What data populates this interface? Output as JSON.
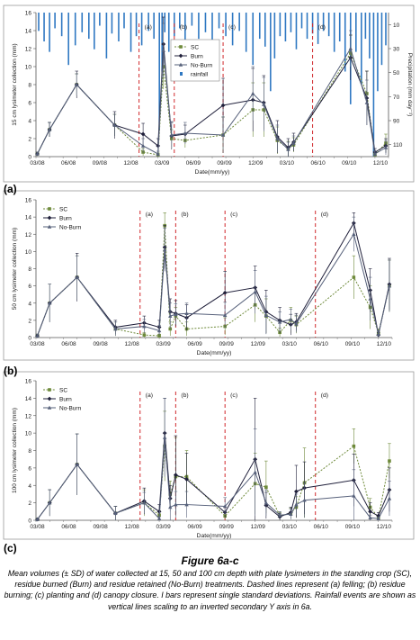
{
  "colors": {
    "sc": "#6e8a3a",
    "burn": "#1f1f3a",
    "noburn": "#56607a",
    "rain": "#2f78c2",
    "event": "#d0282c",
    "frame": "#9a9a9a"
  },
  "figure": {
    "title": "Figure 6a-c",
    "caption": "Mean volumes (± SD) of water collected at 15, 50 and 100 cm depth with plate lysimeters in the standing crop (SC), residue burned (Burn) and residue retained (No-Burn) treatments. Dashed lines represent (a) felling; (b) residue burning; (c) planting and (d) canopy closure. I bars represent single standard deviations. Rainfall events are shown as vertical lines scaling to an inverted secondary Y axis in 6a."
  },
  "chart_data": [
    {
      "panel": "(a)",
      "type": "line",
      "ylabel": "15 cm lysimeter collection (mm)",
      "y2label": "Precipitation (mm day⁻¹)",
      "xlabel": "Date(mm/yy)",
      "ylim": [
        0,
        16
      ],
      "yticks": [
        0,
        2,
        4,
        6,
        8,
        10,
        12,
        14,
        16
      ],
      "y2ticks": [
        "10",
        "30",
        "50",
        "70",
        "90",
        "110"
      ],
      "xlim": [
        0,
        26
      ],
      "xticks": [
        "03/08",
        "06/08",
        "09/08",
        "12/08",
        "03/09",
        "06/09",
        "09/09",
        "12/09",
        "03/10",
        "06/10",
        "09/10",
        "12/10"
      ],
      "legend_position": "top-center",
      "events": [
        {
          "label": "(a)",
          "x": 7.6
        },
        {
          "label": "(b)",
          "x": 10.2
        },
        {
          "label": "(c)",
          "x": 13.8
        },
        {
          "label": "(d)",
          "x": 20.4
        }
      ],
      "rainfall": {
        "name": "rainfall",
        "x": [
          0.2,
          0.6,
          1.0,
          1.4,
          1.9,
          2.4,
          2.9,
          3.4,
          3.9,
          4.3,
          4.7,
          5.2,
          5.6,
          6.1,
          6.5,
          7.0,
          7.4,
          7.8,
          8.3,
          8.7,
          9.1,
          9.3,
          9.5,
          9.8,
          10.2,
          10.6,
          11.0,
          11.5,
          12.0,
          12.5,
          13.0,
          13.5,
          14.0,
          14.5,
          15.0,
          15.5,
          16.0,
          16.5,
          16.9,
          17.3,
          17.6,
          18.0,
          18.4,
          18.8,
          19.2,
          19.6,
          20.0,
          20.4,
          20.8,
          21.2,
          21.6,
          22.0,
          22.4,
          22.8,
          23.2,
          23.6,
          24.0,
          24.3,
          24.6,
          24.9,
          25.2,
          25.5,
          25.8
        ],
        "values": [
          14,
          22,
          30,
          12,
          18,
          40,
          25,
          15,
          20,
          28,
          10,
          35,
          16,
          22,
          12,
          30,
          18,
          25,
          14,
          20,
          90,
          45,
          15,
          30,
          18,
          12,
          25,
          10,
          20,
          15,
          22,
          12,
          18,
          25,
          14,
          30,
          40,
          20,
          26,
          60,
          35,
          18,
          22,
          15,
          28,
          12,
          20,
          16,
          24,
          14,
          18,
          30,
          22,
          45,
          70,
          30,
          55,
          20,
          35,
          110,
          60,
          40,
          25
        ]
      },
      "series": [
        {
          "name": "SC",
          "x": [
            0.1,
            1.0,
            3.0,
            5.8,
            7.9,
            9.0,
            9.4,
            10.0,
            11.0,
            13.8,
            16.0,
            16.8,
            17.8,
            18.6,
            19.0,
            23.2,
            24.4,
            25.0,
            25.8
          ],
          "y": [
            0.3,
            3.0,
            8.0,
            3.5,
            0.5,
            0.2,
            10.0,
            2.0,
            1.8,
            2.4,
            5.2,
            5.2,
            1.8,
            0.9,
            1.3,
            11.5,
            7.0,
            0.2,
            1.5
          ],
          "sd": [
            0.2,
            0.8,
            1.2,
            1.2,
            0.4,
            0.2,
            2.5,
            1.0,
            0.8,
            2.0,
            3.0,
            3.0,
            1.5,
            0.8,
            0.8,
            2.0,
            2.5,
            0.2,
            1.0
          ]
        },
        {
          "name": "Burn",
          "x": [
            0.1,
            1.0,
            3.0,
            5.8,
            7.9,
            9.0,
            9.4,
            10.0,
            11.0,
            13.8,
            16.0,
            16.8,
            17.8,
            18.6,
            19.0,
            23.2,
            24.4,
            25.0,
            25.8
          ],
          "y": [
            0.3,
            3.0,
            8.0,
            3.5,
            2.5,
            1.2,
            12.5,
            2.3,
            2.5,
            5.7,
            6.3,
            6.0,
            2.2,
            1.0,
            1.6,
            11.0,
            6.5,
            0.5,
            1.2
          ],
          "sd": [
            0.2,
            0.8,
            1.5,
            1.5,
            1.2,
            0.8,
            3.0,
            1.5,
            1.0,
            3.0,
            3.5,
            3.0,
            1.8,
            1.0,
            1.0,
            2.5,
            3.0,
            0.4,
            0.8
          ]
        },
        {
          "name": "No-Burn",
          "x": [
            0.1,
            1.0,
            3.0,
            5.8,
            7.9,
            9.0,
            9.4,
            10.0,
            11.0,
            13.8,
            16.0,
            16.8,
            17.8,
            18.6,
            19.0,
            23.2,
            24.4,
            25.0,
            25.8
          ],
          "y": [
            0.3,
            3.0,
            8.0,
            3.5,
            1.2,
            0.3,
            11.8,
            2.4,
            2.6,
            2.4,
            7.0,
            5.8,
            2.0,
            0.8,
            1.5,
            12.0,
            6.0,
            0.3,
            1.0
          ],
          "sd": [
            0.2,
            0.8,
            1.2,
            1.2,
            0.8,
            0.3,
            3.0,
            1.5,
            1.2,
            2.0,
            3.0,
            3.0,
            1.5,
            0.8,
            0.8,
            2.0,
            2.5,
            0.3,
            0.8
          ]
        }
      ]
    },
    {
      "panel": "(b)",
      "type": "line",
      "ylabel": "50 cm lysimeter collection (mm)",
      "xlabel": "Date(mm/yy)",
      "ylim": [
        0,
        16
      ],
      "yticks": [
        0,
        2,
        4,
        6,
        8,
        10,
        12,
        14,
        16
      ],
      "xlim": [
        0,
        26
      ],
      "xticks": [
        "03/08",
        "06/08",
        "09/08",
        "12/08",
        "03/09",
        "06/09",
        "09/09",
        "12/09",
        "03/10",
        "06/10",
        "09/10",
        "12/10"
      ],
      "legend_position": "top-left",
      "events": [
        {
          "label": "(a)",
          "x": 7.6
        },
        {
          "label": "(b)",
          "x": 10.2
        },
        {
          "label": "(c)",
          "x": 13.8
        },
        {
          "label": "(d)",
          "x": 20.4
        }
      ],
      "series": [
        {
          "name": "SC",
          "x": [
            0.1,
            1.0,
            3.0,
            5.8,
            7.9,
            9.0,
            9.4,
            9.8,
            10.2,
            11.0,
            13.8,
            16.0,
            16.8,
            17.8,
            18.6,
            19.0,
            23.2,
            24.4,
            25.0,
            25.8
          ],
          "y": [
            0.2,
            4.0,
            7.0,
            1.0,
            0.3,
            0.2,
            13.0,
            1.0,
            2.5,
            1.0,
            1.3,
            3.8,
            2.5,
            0.6,
            2.0,
            1.5,
            7.0,
            3.5,
            0.5,
            6.0
          ],
          "sd": [
            0.2,
            2.2,
            2.5,
            0.8,
            0.3,
            0.2,
            1.5,
            0.8,
            1.0,
            0.8,
            1.0,
            2.0,
            2.0,
            0.5,
            1.5,
            1.0,
            2.5,
            2.5,
            0.5,
            3.0
          ]
        },
        {
          "name": "Burn",
          "x": [
            0.1,
            1.0,
            3.0,
            5.8,
            7.9,
            9.0,
            9.4,
            9.8,
            10.2,
            11.0,
            13.8,
            16.0,
            16.8,
            17.8,
            18.6,
            19.0,
            23.2,
            24.4,
            25.0,
            25.8
          ],
          "y": [
            0.2,
            4.0,
            7.0,
            1.2,
            1.7,
            1.2,
            10.5,
            3.0,
            2.8,
            2.3,
            5.2,
            5.8,
            3.0,
            2.0,
            1.5,
            1.8,
            13.3,
            5.5,
            0.3,
            6.2
          ],
          "sd": [
            0.2,
            2.2,
            2.8,
            0.8,
            0.8,
            0.8,
            2.5,
            1.5,
            1.5,
            1.5,
            2.5,
            2.5,
            2.5,
            1.5,
            1.2,
            1.0,
            1.2,
            2.5,
            0.3,
            3.0
          ]
        },
        {
          "name": "No-Burn",
          "x": [
            0.1,
            1.0,
            3.0,
            5.8,
            7.9,
            9.0,
            9.4,
            9.8,
            10.2,
            11.0,
            13.8,
            16.0,
            16.8,
            17.8,
            18.6,
            19.0,
            23.2,
            24.4,
            25.0,
            25.8
          ],
          "y": [
            0.2,
            4.0,
            7.0,
            1.0,
            1.3,
            0.8,
            10.2,
            2.5,
            2.7,
            2.8,
            2.6,
            5.3,
            2.6,
            1.8,
            2.1,
            1.6,
            12.0,
            4.5,
            0.4,
            6.0
          ],
          "sd": [
            0.2,
            2.2,
            2.5,
            0.8,
            0.8,
            0.6,
            2.5,
            1.5,
            1.2,
            1.2,
            1.5,
            2.5,
            2.2,
            1.2,
            1.2,
            1.0,
            2.0,
            2.5,
            0.4,
            3.0
          ]
        }
      ]
    },
    {
      "panel": "(c)",
      "type": "line",
      "ylabel": "100 cm lysimeter collection (mm)",
      "xlabel": "Date(mm/yy)",
      "ylim": [
        0,
        16
      ],
      "yticks": [
        0,
        2,
        4,
        6,
        8,
        10,
        12,
        14,
        16
      ],
      "xlim": [
        0,
        26
      ],
      "xticks": [
        "03/08",
        "06/08",
        "09/08",
        "12/08",
        "03/09",
        "06/09",
        "09/09",
        "12/09",
        "03/10",
        "06/10",
        "09/10",
        "12/10"
      ],
      "legend_position": "top-left",
      "events": [
        {
          "label": "(a)",
          "x": 7.6
        },
        {
          "label": "(b)",
          "x": 10.2
        },
        {
          "label": "(c)",
          "x": 13.8
        },
        {
          "label": "(d)",
          "x": 20.4
        }
      ],
      "series": [
        {
          "name": "SC",
          "x": [
            0.1,
            1.0,
            3.0,
            5.8,
            7.9,
            9.0,
            9.4,
            9.8,
            10.2,
            11.0,
            13.8,
            16.0,
            16.8,
            17.8,
            18.6,
            19.0,
            19.6,
            23.2,
            24.4,
            25.0,
            25.8
          ],
          "y": [
            0.1,
            2.0,
            6.4,
            0.8,
            2.0,
            0.6,
            8.5,
            3.0,
            5.0,
            5.0,
            0.5,
            4.2,
            3.8,
            0.5,
            0.8,
            1.5,
            4.3,
            8.5,
            1.5,
            0.3,
            6.8
          ],
          "sd": [
            0.1,
            1.5,
            3.5,
            0.8,
            1.5,
            0.5,
            4.0,
            1.5,
            4.5,
            3.0,
            0.4,
            3.5,
            3.0,
            0.4,
            0.6,
            1.2,
            4.0,
            2.0,
            1.0,
            0.3,
            2.0
          ]
        },
        {
          "name": "Burn",
          "x": [
            0.1,
            1.0,
            3.0,
            5.8,
            7.9,
            9.0,
            9.4,
            9.8,
            10.2,
            11.0,
            13.8,
            16.0,
            16.8,
            17.8,
            18.6,
            19.0,
            19.6,
            23.2,
            24.4,
            25.0,
            25.8
          ],
          "y": [
            0.1,
            2.0,
            6.4,
            0.8,
            2.2,
            1.0,
            10.0,
            2.5,
            5.2,
            4.7,
            0.9,
            7.0,
            1.7,
            0.4,
            0.9,
            3.3,
            3.7,
            4.6,
            1.0,
            0.5,
            3.5
          ],
          "sd": [
            0.1,
            1.5,
            3.5,
            0.8,
            1.5,
            0.8,
            4.0,
            1.5,
            4.5,
            3.0,
            0.6,
            7.0,
            1.5,
            0.4,
            0.6,
            3.0,
            3.0,
            3.0,
            1.0,
            0.4,
            2.5
          ]
        },
        {
          "name": "No-Burn",
          "x": [
            0.1,
            1.0,
            3.0,
            5.8,
            7.9,
            9.0,
            9.4,
            9.8,
            10.2,
            11.0,
            13.8,
            16.0,
            16.8,
            17.8,
            18.6,
            19.0,
            19.6,
            23.2,
            24.4,
            25.0,
            25.8
          ],
          "y": [
            0.1,
            2.0,
            6.4,
            0.8,
            2.0,
            0.2,
            9.5,
            1.5,
            1.8,
            1.8,
            1.6,
            5.5,
            2.0,
            0.6,
            0.7,
            1.8,
            2.3,
            2.8,
            0.3,
            0.2,
            2.5
          ],
          "sd": [
            0.1,
            1.5,
            3.5,
            0.8,
            1.2,
            0.2,
            4.5,
            1.5,
            1.5,
            1.5,
            1.0,
            5.0,
            1.5,
            0.4,
            0.6,
            1.2,
            2.0,
            3.0,
            0.3,
            0.2,
            2.0
          ]
        }
      ]
    }
  ]
}
